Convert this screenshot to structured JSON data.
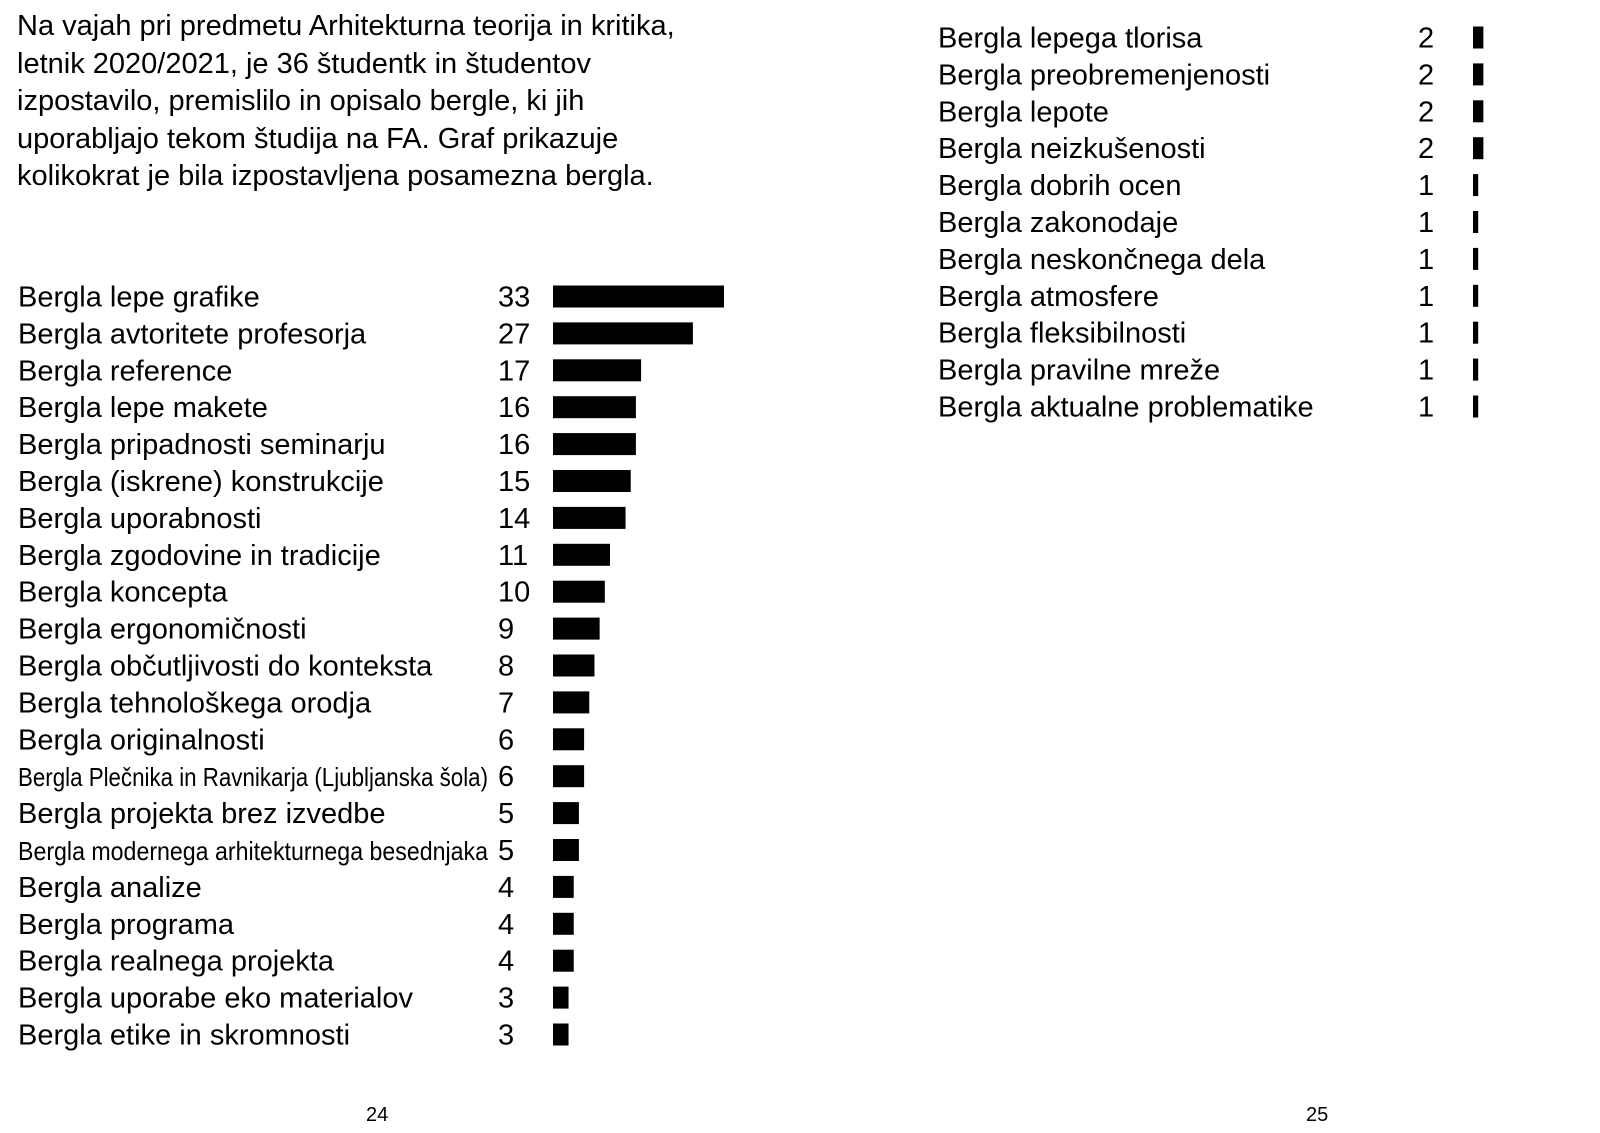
{
  "intro_text": "Na vajah pri predmetu Arhitekturna teorija in kritika, letnik 2020/2021, je 36 študentk in študentov izpostavilo, premislilo in opisalo bergle, ki jih uporabljajo tekom študija na FA. Graf prikazuje kolikokrat je bila izpostavljena posamezna bergla.",
  "page_numbers": {
    "left": "24",
    "right": "25"
  },
  "colors": {
    "bar": "#000000",
    "background": "#ffffff"
  },
  "chart_data": {
    "type": "bar",
    "orientation": "horizontal",
    "title": "",
    "xlabel": "",
    "ylabel": "",
    "grid": false,
    "xlim": [
      0,
      33
    ],
    "categories": [
      "Bergla lepe grafike",
      "Bergla avtoritete profesorja",
      "Bergla reference",
      "Bergla lepe makete",
      "Bergla pripadnosti seminarju",
      "Bergla (iskrene) konstrukcije",
      "Bergla uporabnosti",
      "Bergla zgodovine in tradicije",
      "Bergla koncepta",
      "Bergla ergonomičnosti",
      "Bergla občutljivosti do konteksta",
      "Bergla tehnološkega orodja",
      "Bergla originalnosti",
      "Bergla Plečnika in Ravnikarja (Ljubljanska šola)",
      "Bergla projekta brez izvedbe",
      "Bergla modernega arhitekturnega besednjaka",
      "Bergla analize",
      "Bergla programa",
      "Bergla realnega projekta",
      "Bergla uporabe eko materialov",
      "Bergla etike in skromnosti",
      "Bergla lepega tlorisa",
      "Bergla preobremenjenosti",
      "Bergla lepote",
      "Bergla neizkušenosti",
      "Bergla dobrih ocen",
      "Bergla zakonodaje",
      "Bergla neskončnega dela",
      "Bergla atmosfere",
      "Bergla fleksibilnosti",
      "Bergla pravilne mreže",
      "Bergla aktualne problematike"
    ],
    "values": [
      33,
      27,
      17,
      16,
      16,
      15,
      14,
      11,
      10,
      9,
      8,
      7,
      6,
      6,
      5,
      5,
      4,
      4,
      4,
      3,
      3,
      2,
      2,
      2,
      2,
      1,
      1,
      1,
      1,
      1,
      1,
      1
    ]
  }
}
